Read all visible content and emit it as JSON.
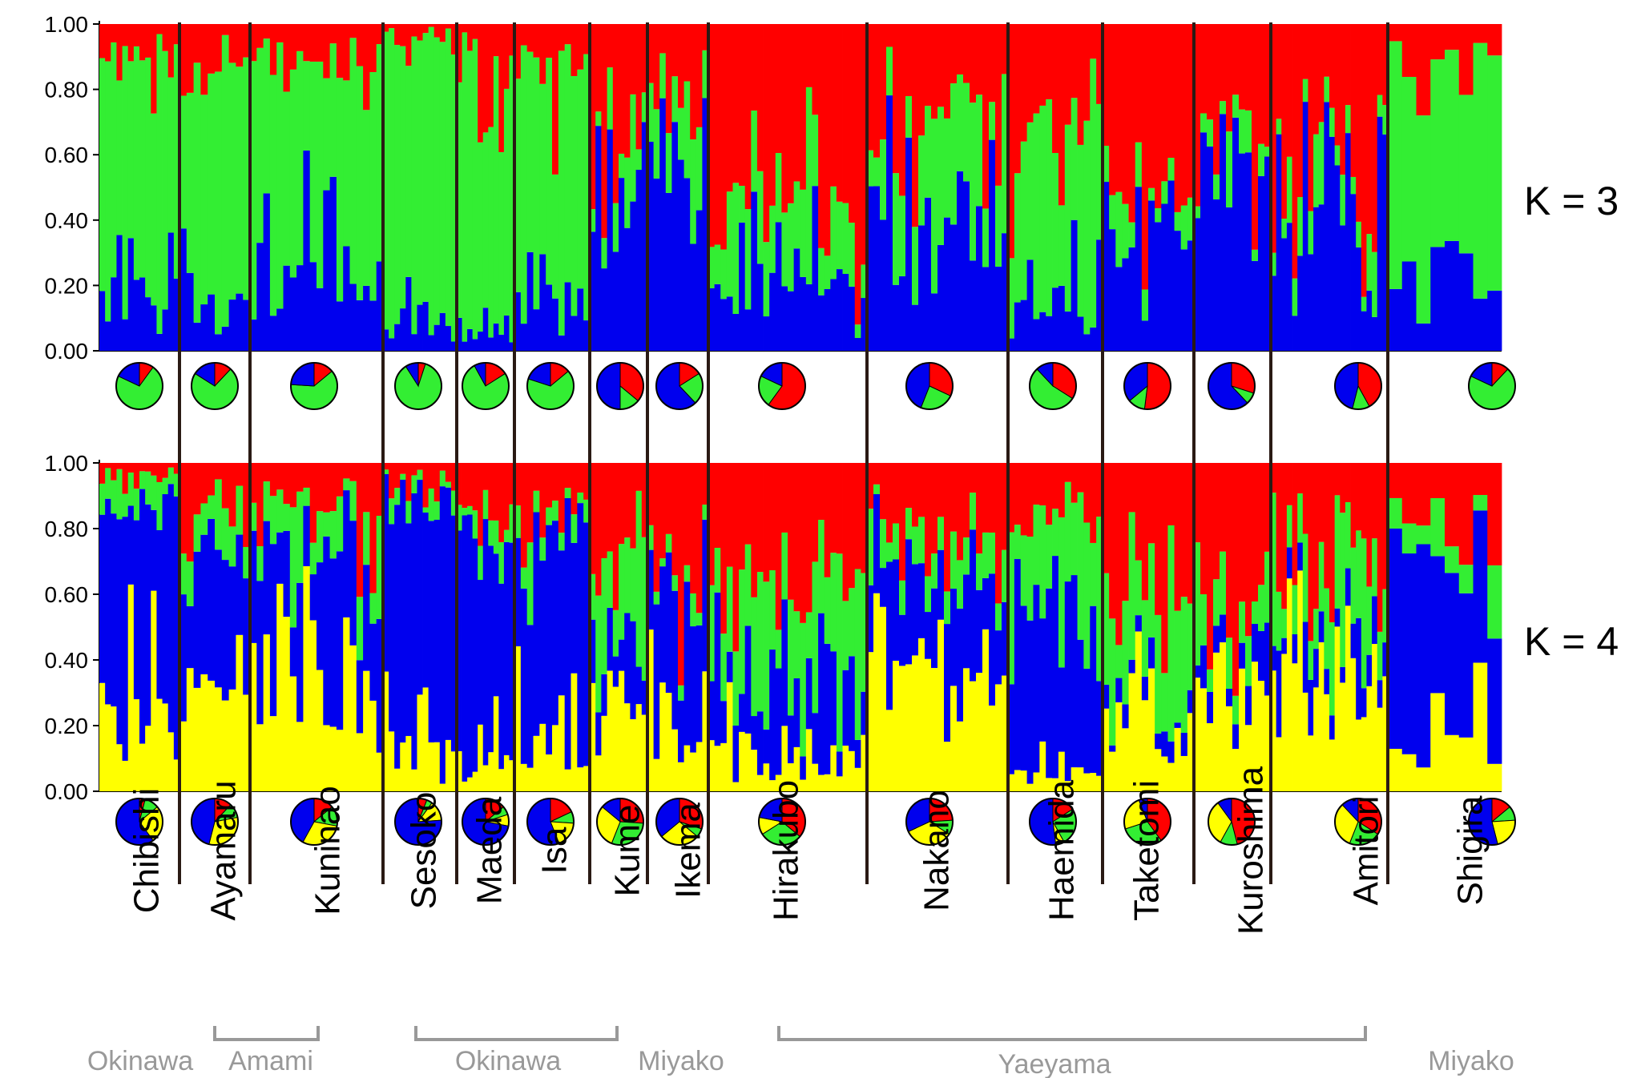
{
  "colors": {
    "red": "#ff0000",
    "green": "#33ee33",
    "blue": "#0000ee",
    "yellow": "#ffff00",
    "separator": "#2a1a14",
    "group": "#999999"
  },
  "chart_data": [
    {
      "type": "bar",
      "subtype": "stacked-admixture",
      "panel_label": "K = 3",
      "ylim": [
        0,
        1
      ],
      "yticks": [
        "1.00",
        "0.80",
        "0.60",
        "0.40",
        "0.20",
        "0.00"
      ],
      "population_means": {
        "Chibishi": {
          "red": 0.1,
          "green": 0.72,
          "blue": 0.18
        },
        "Ayamaru": {
          "red": 0.12,
          "green": 0.72,
          "blue": 0.16
        },
        "Kuninao": {
          "red": 0.14,
          "green": 0.62,
          "blue": 0.24
        },
        "Sesoko": {
          "red": 0.05,
          "green": 0.86,
          "blue": 0.09
        },
        "Maeda": {
          "red": 0.16,
          "green": 0.76,
          "blue": 0.08
        },
        "Isa": {
          "red": 0.14,
          "green": 0.66,
          "blue": 0.2
        },
        "Kume": {
          "red": 0.36,
          "green": 0.14,
          "blue": 0.5
        },
        "Ikema": {
          "red": 0.16,
          "green": 0.22,
          "blue": 0.62
        },
        "Hirakubo": {
          "red": 0.6,
          "green": 0.22,
          "blue": 0.18
        },
        "Nakano": {
          "red": 0.32,
          "green": 0.24,
          "blue": 0.44
        },
        "Haemida": {
          "red": 0.34,
          "green": 0.54,
          "blue": 0.12
        },
        "Taketomi": {
          "red": 0.52,
          "green": 0.12,
          "blue": 0.36
        },
        "Kuroshima": {
          "red": 0.3,
          "green": 0.08,
          "blue": 0.62
        },
        "Amitori": {
          "red": 0.42,
          "green": 0.12,
          "blue": 0.46
        },
        "Shigira": {
          "red": 0.12,
          "green": 0.7,
          "blue": 0.18
        }
      }
    },
    {
      "type": "bar",
      "subtype": "stacked-admixture",
      "panel_label": "K = 4",
      "ylim": [
        0,
        1
      ],
      "yticks": [
        "1.00",
        "0.80",
        "0.60",
        "0.40",
        "0.20",
        "0.00"
      ],
      "population_means": {
        "Chibishi": {
          "red": 0.04,
          "green": 0.1,
          "blue": 0.6,
          "yellow": 0.26
        },
        "Ayamaru": {
          "red": 0.12,
          "green": 0.1,
          "blue": 0.46,
          "yellow": 0.32
        },
        "Kuninao": {
          "red": 0.14,
          "green": 0.14,
          "blue": 0.42,
          "yellow": 0.3
        },
        "Sesoko": {
          "red": 0.06,
          "green": 0.04,
          "blue": 0.76,
          "yellow": 0.14
        },
        "Maeda": {
          "red": 0.14,
          "green": 0.06,
          "blue": 0.72,
          "yellow": 0.08
        },
        "Isa": {
          "red": 0.18,
          "green": 0.08,
          "blue": 0.56,
          "yellow": 0.18
        },
        "Kume": {
          "red": 0.26,
          "green": 0.3,
          "blue": 0.14,
          "yellow": 0.3
        },
        "Ikema": {
          "red": 0.3,
          "green": 0.06,
          "blue": 0.36,
          "yellow": 0.28
        },
        "Hirakubo": {
          "red": 0.36,
          "green": 0.3,
          "blue": 0.22,
          "yellow": 0.12
        },
        "Nakano": {
          "red": 0.24,
          "green": 0.1,
          "blue": 0.32,
          "yellow": 0.34
        },
        "Haemida": {
          "red": 0.16,
          "green": 0.26,
          "blue": 0.52,
          "yellow": 0.06
        },
        "Taketomi": {
          "red": 0.4,
          "green": 0.3,
          "blue": 0.06,
          "yellow": 0.24
        },
        "Kuroshima": {
          "red": 0.46,
          "green": 0.12,
          "blue": 0.1,
          "yellow": 0.32
        },
        "Amitori": {
          "red": 0.34,
          "green": 0.22,
          "blue": 0.12,
          "yellow": 0.32
        },
        "Shigira": {
          "red": 0.14,
          "green": 0.1,
          "blue": 0.54,
          "yellow": 0.22
        }
      }
    }
  ],
  "populations": [
    "Chibishi",
    "Ayamaru",
    "Kuninao",
    "Sesoko",
    "Maeda",
    "Isa",
    "Kume",
    "Ikema",
    "Hirakubo",
    "Nakano",
    "Haemida",
    "Taketomi",
    "Kuroshima",
    "Amitori",
    "Shigira"
  ],
  "population_individuals": [
    14,
    10,
    20,
    13,
    11,
    12,
    10,
    10,
    26,
    22,
    15,
    14,
    12,
    22,
    8
  ],
  "region_labels": [
    "Okinawa",
    "Amami",
    "Okinawa",
    "Miyako",
    "Yaeyama",
    "Miyako"
  ]
}
